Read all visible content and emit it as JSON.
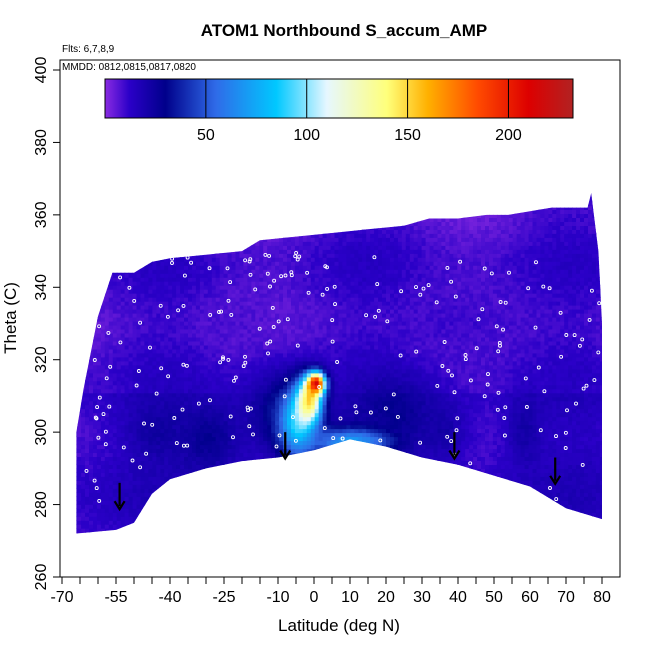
{
  "chart_data": {
    "type": "heatmap",
    "title": "ATOM1 Northbound S_accum_AMP",
    "annotations": {
      "flights": "Flts: 6,7,8,9",
      "dates": "MMDD: 0812,0815,0817,0820"
    },
    "xlabel": "Latitude (deg N)",
    "ylabel": "Theta (C)",
    "xlim": [
      -70,
      82
    ],
    "ylim": [
      260,
      405
    ],
    "x_major_ticks": [
      -70,
      -55,
      -40,
      -25,
      -10,
      0,
      10,
      20,
      30,
      40,
      50,
      60,
      70,
      80
    ],
    "x_minor_ticks": [
      -65,
      -60,
      -50,
      -45,
      -35,
      -30,
      -20,
      -15,
      -5,
      5,
      15,
      25,
      35,
      45,
      55,
      65,
      75
    ],
    "y_ticks": [
      260,
      280,
      300,
      320,
      340,
      360,
      380,
      400
    ],
    "colorbar": {
      "range": [
        0,
        232
      ],
      "ticks": [
        50,
        100,
        150,
        200
      ],
      "stops": [
        {
          "v": 0,
          "c": "#8a2be2"
        },
        {
          "v": 12,
          "c": "#2b00c8"
        },
        {
          "v": 30,
          "c": "#00008b"
        },
        {
          "v": 55,
          "c": "#2f6be8"
        },
        {
          "v": 85,
          "c": "#00c8ff"
        },
        {
          "v": 110,
          "c": "#e6f7ff"
        },
        {
          "v": 140,
          "c": "#ffff7a"
        },
        {
          "v": 160,
          "c": "#ffb000"
        },
        {
          "v": 185,
          "c": "#ff4a00"
        },
        {
          "v": 210,
          "c": "#dd0000"
        },
        {
          "v": 232,
          "c": "#b22222"
        }
      ]
    },
    "bottom_boundary": [
      [
        -66,
        272
      ],
      [
        -55,
        273
      ],
      [
        -50,
        275
      ],
      [
        -45,
        283
      ],
      [
        -40,
        287
      ],
      [
        -30,
        290
      ],
      [
        -20,
        292
      ],
      [
        -10,
        293
      ],
      [
        0,
        295
      ],
      [
        10,
        298
      ],
      [
        20,
        296
      ],
      [
        30,
        293
      ],
      [
        40,
        291
      ],
      [
        50,
        288
      ],
      [
        60,
        285
      ],
      [
        70,
        279
      ],
      [
        80,
        276
      ]
    ],
    "top_boundary": [
      [
        -66,
        300
      ],
      [
        -64,
        312
      ],
      [
        -60,
        332
      ],
      [
        -56,
        344
      ],
      [
        -50,
        344
      ],
      [
        -45,
        347
      ],
      [
        -40,
        348
      ],
      [
        -30,
        349
      ],
      [
        -20,
        350
      ],
      [
        -15,
        353
      ],
      [
        -5,
        354
      ],
      [
        5,
        355
      ],
      [
        15,
        356
      ],
      [
        25,
        357
      ],
      [
        32,
        359
      ],
      [
        40,
        359
      ],
      [
        48,
        360
      ],
      [
        54,
        360
      ],
      [
        60,
        361
      ],
      [
        66,
        362
      ],
      [
        72,
        362
      ],
      [
        76,
        362
      ],
      [
        77,
        366
      ],
      [
        79,
        350
      ],
      [
        80,
        330
      ],
      [
        80,
        276
      ]
    ],
    "field_blobs": [
      {
        "lat": -62,
        "theta": 285,
        "value": 6,
        "rx": 5,
        "ry": 12
      },
      {
        "lat": -30,
        "theta": 298,
        "value": 28,
        "rx": 9,
        "ry": 10
      },
      {
        "lat": -44,
        "theta": 300,
        "value": 24,
        "rx": 8,
        "ry": 8
      },
      {
        "lat": -10,
        "theta": 305,
        "value": 30,
        "rx": 10,
        "ry": 12
      },
      {
        "lat": -5,
        "theta": 302,
        "value": 90,
        "rx": 5,
        "ry": 9
      },
      {
        "lat": -2,
        "theta": 308,
        "value": 150,
        "rx": 3.5,
        "ry": 6
      },
      {
        "lat": 0,
        "theta": 313,
        "value": 215,
        "rx": 2.5,
        "ry": 3
      },
      {
        "lat": 10,
        "theta": 297,
        "value": 70,
        "rx": 12,
        "ry": 4
      },
      {
        "lat": 22,
        "theta": 305,
        "value": 28,
        "rx": 12,
        "ry": 10
      },
      {
        "lat": 35,
        "theta": 300,
        "value": 22,
        "rx": 7,
        "ry": 8
      },
      {
        "lat": 58,
        "theta": 300,
        "value": 22,
        "rx": 5,
        "ry": 10
      },
      {
        "lat": -25,
        "theta": 330,
        "value": 8,
        "rx": 20,
        "ry": 10
      },
      {
        "lat": 40,
        "theta": 330,
        "value": 10,
        "rx": 25,
        "ry": 12
      }
    ],
    "arrows_latitude": [
      -54,
      -8,
      39,
      67
    ],
    "arrows_theta_top": [
      279,
      293,
      293,
      286
    ],
    "sample_points": {
      "count": 260,
      "color": "#ffffff"
    }
  }
}
